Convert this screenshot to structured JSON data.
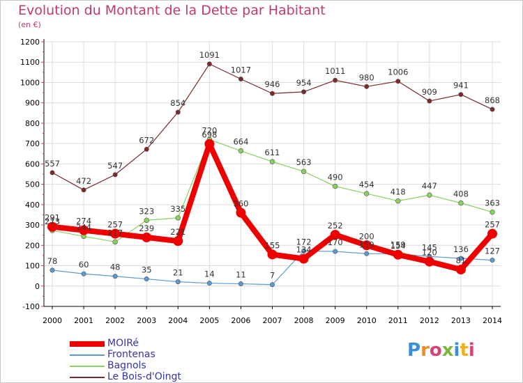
{
  "header": {
    "title": "Evolution du Montant de la Dette par Habitant",
    "subtitle": "(en €)"
  },
  "brand": {
    "logo_text": "Proxiti",
    "letter_colors": [
      "#3a8fd8",
      "#f08a24",
      "#d8407a",
      "#7ab83a",
      "#3a8fd8",
      "#f0b020",
      "#d8407a"
    ]
  },
  "colors": {
    "title": "#c0386e",
    "axis": "#000000",
    "grid": "#dcdcdc",
    "point_label": "#333333",
    "legend_text": "#3333aa"
  },
  "chart_data": {
    "type": "line",
    "x": [
      "2000",
      "2001",
      "2002",
      "2003",
      "2004",
      "2005",
      "2006",
      "2007",
      "2008",
      "2009",
      "2010",
      "2011",
      "2012",
      "2013",
      "2014"
    ],
    "yticks": [
      "-100",
      "0",
      "100",
      "200",
      "300",
      "400",
      "500",
      "600",
      "700",
      "800",
      "900",
      "1000",
      "1100",
      "1200"
    ],
    "ylim": [
      -100,
      1200
    ],
    "grid": true,
    "legend_position": "bottom-left",
    "series": [
      {
        "name": "Le Bois-d'Oingt",
        "color": "#7a2a2a",
        "width": 1.2,
        "marker": 3.2,
        "values": [
          557,
          472,
          547,
          672,
          854,
          1091,
          1017,
          946,
          954,
          1011,
          980,
          1006,
          909,
          941,
          868
        ]
      },
      {
        "name": "Bagnols",
        "color": "#88d060",
        "width": 1.2,
        "marker": 3.4,
        "values": [
          273,
          244,
          217,
          323,
          335,
          720,
          664,
          611,
          563,
          490,
          454,
          418,
          447,
          408,
          363
        ]
      },
      {
        "name": "Frontenas",
        "color": "#5a9ad0",
        "width": 1.2,
        "marker": 3.2,
        "values": [
          78,
          60,
          48,
          35,
          21,
          14,
          11,
          7,
          172,
          170,
          159,
          159,
          145,
          136,
          127
        ]
      },
      {
        "name": "MOIRé",
        "color": "#ee0000",
        "width": 8,
        "marker": 7,
        "values": [
          291,
          274,
          257,
          239,
          221,
          698,
          360,
          155,
          134,
          252,
          200,
          154,
          120,
          81,
          257
        ]
      }
    ],
    "legend_order": [
      "MOIRé",
      "Frontenas",
      "Bagnols",
      "Le Bois-d'Oingt"
    ],
    "data_labels": [
      {
        "series": "Le Bois-d'Oingt",
        "text": [
          "557",
          "472",
          "547",
          "672",
          "854",
          "1091",
          "1017",
          "946",
          "954",
          "1011",
          "980",
          "1006",
          "909",
          "941",
          "868"
        ]
      },
      {
        "series": "Bagnols",
        "text": [
          "273",
          "244",
          "217",
          "323",
          "335",
          "720",
          "664",
          "611",
          "563",
          "490",
          "454",
          "418",
          "447",
          "408",
          "363"
        ]
      },
      {
        "series": "Frontenas",
        "text": [
          "78",
          "60",
          "48",
          "35",
          "21",
          "14",
          "11",
          "7",
          "172",
          "170",
          "159",
          "159",
          "145",
          "136",
          "127"
        ]
      },
      {
        "series": "MOIRé",
        "text": [
          "291",
          "274",
          "257",
          "239",
          "221",
          "698",
          "360",
          "155",
          "134",
          "252",
          "200",
          "154",
          "120",
          "81",
          "257"
        ]
      }
    ]
  }
}
